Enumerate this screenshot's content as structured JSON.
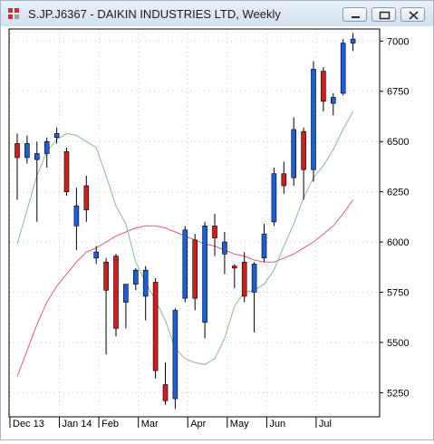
{
  "window": {
    "title": "S.JP.J6367 - DAIKIN INDUSTRIES LTD, Weekly",
    "buttons": [
      "minimize",
      "restore",
      "close"
    ]
  },
  "chart_data": {
    "type": "candlestick",
    "title": "S.JP.J6367 - DAIKIN INDUSTRIES LTD, Weekly",
    "interval": "Weekly",
    "ylim": [
      5130,
      7060
    ],
    "y_ticks": [
      5250,
      5500,
      5750,
      6000,
      6250,
      6500,
      6750,
      7000
    ],
    "x_labels": [
      {
        "label": "Dec 13",
        "index": 0
      },
      {
        "label": "Jan 14",
        "index": 5
      },
      {
        "label": "Feb",
        "index": 9
      },
      {
        "label": "Mar",
        "index": 13
      },
      {
        "label": "Apr",
        "index": 18
      },
      {
        "label": "May",
        "index": 22
      },
      {
        "label": "Jun",
        "index": 26
      },
      {
        "label": "Jul",
        "index": 31
      }
    ],
    "grid": true,
    "colors": {
      "up": "#1a5fd6",
      "down": "#d41c1c",
      "wick": "#000000",
      "ma_short": "#8dbb8d",
      "ma_long": "#e05a8a"
    },
    "candles": [
      {
        "o": 6490,
        "h": 6540,
        "l": 6210,
        "c": 6420
      },
      {
        "o": 6420,
        "h": 6530,
        "l": 6390,
        "c": 6490
      },
      {
        "o": 6410,
        "h": 6500,
        "l": 6100,
        "c": 6440
      },
      {
        "o": 6440,
        "h": 6520,
        "l": 6370,
        "c": 6500
      },
      {
        "o": 6520,
        "h": 6570,
        "l": 6490,
        "c": 6540
      },
      {
        "o": 6450,
        "h": 6470,
        "l": 6230,
        "c": 6250
      },
      {
        "o": 6080,
        "h": 6270,
        "l": 5960,
        "c": 6180
      },
      {
        "o": 6280,
        "h": 6330,
        "l": 6100,
        "c": 6160
      },
      {
        "o": 5920,
        "h": 5980,
        "l": 5890,
        "c": 5950
      },
      {
        "o": 5900,
        "h": 5920,
        "l": 5440,
        "c": 5760
      },
      {
        "o": 5930,
        "h": 5940,
        "l": 5530,
        "c": 5570
      },
      {
        "o": 5700,
        "h": 5790,
        "l": 5570,
        "c": 5790
      },
      {
        "o": 5790,
        "h": 5870,
        "l": 5760,
        "c": 5860
      },
      {
        "o": 5730,
        "h": 5880,
        "l": 5610,
        "c": 5860
      },
      {
        "o": 5800,
        "h": 5820,
        "l": 5320,
        "c": 5360
      },
      {
        "o": 5290,
        "h": 5400,
        "l": 5190,
        "c": 5210
      },
      {
        "o": 5220,
        "h": 5670,
        "l": 5170,
        "c": 5660
      },
      {
        "o": 5720,
        "h": 6080,
        "l": 5700,
        "c": 6060
      },
      {
        "o": 6010,
        "h": 6040,
        "l": 5660,
        "c": 5720
      },
      {
        "o": 5600,
        "h": 6100,
        "l": 5520,
        "c": 6080
      },
      {
        "o": 6080,
        "h": 6140,
        "l": 5930,
        "c": 6020
      },
      {
        "o": 5940,
        "h": 6050,
        "l": 5840,
        "c": 6000
      },
      {
        "o": 5880,
        "h": 5890,
        "l": 5770,
        "c": 5870
      },
      {
        "o": 5900,
        "h": 5950,
        "l": 5700,
        "c": 5730
      },
      {
        "o": 5750,
        "h": 5900,
        "l": 5550,
        "c": 5890
      },
      {
        "o": 5920,
        "h": 6090,
        "l": 5900,
        "c": 6040
      },
      {
        "o": 6100,
        "h": 6370,
        "l": 6080,
        "c": 6340
      },
      {
        "o": 6340,
        "h": 6400,
        "l": 6240,
        "c": 6280
      },
      {
        "o": 6320,
        "h": 6620,
        "l": 6280,
        "c": 6560
      },
      {
        "o": 6550,
        "h": 6570,
        "l": 6210,
        "c": 6360
      },
      {
        "o": 6360,
        "h": 6900,
        "l": 6300,
        "c": 6860
      },
      {
        "o": 6850,
        "h": 6870,
        "l": 6650,
        "c": 6700
      },
      {
        "o": 6690,
        "h": 6740,
        "l": 6630,
        "c": 6720
      },
      {
        "o": 6740,
        "h": 7010,
        "l": 6730,
        "c": 6990
      },
      {
        "o": 6990,
        "h": 7040,
        "l": 6950,
        "c": 7010
      }
    ],
    "ma_short": [
      5990,
      6160,
      6330,
      6450,
      6510,
      6540,
      6530,
      6500,
      6470,
      6330,
      6180,
      6090,
      5900,
      5800,
      5710,
      5610,
      5470,
      5420,
      5400,
      5390,
      5420,
      5520,
      5680,
      5750,
      5760,
      5790,
      5860,
      5980,
      6090,
      6220,
      6320,
      6380,
      6460,
      6560,
      6650
    ],
    "ma_long": [
      5330,
      5460,
      5590,
      5700,
      5780,
      5840,
      5900,
      5950,
      5970,
      6000,
      6030,
      6050,
      6070,
      6080,
      6080,
      6070,
      6050,
      6030,
      6010,
      5990,
      5980,
      5960,
      5940,
      5930,
      5910,
      5900,
      5900,
      5920,
      5940,
      5970,
      6000,
      6040,
      6080,
      6140,
      6210
    ]
  }
}
